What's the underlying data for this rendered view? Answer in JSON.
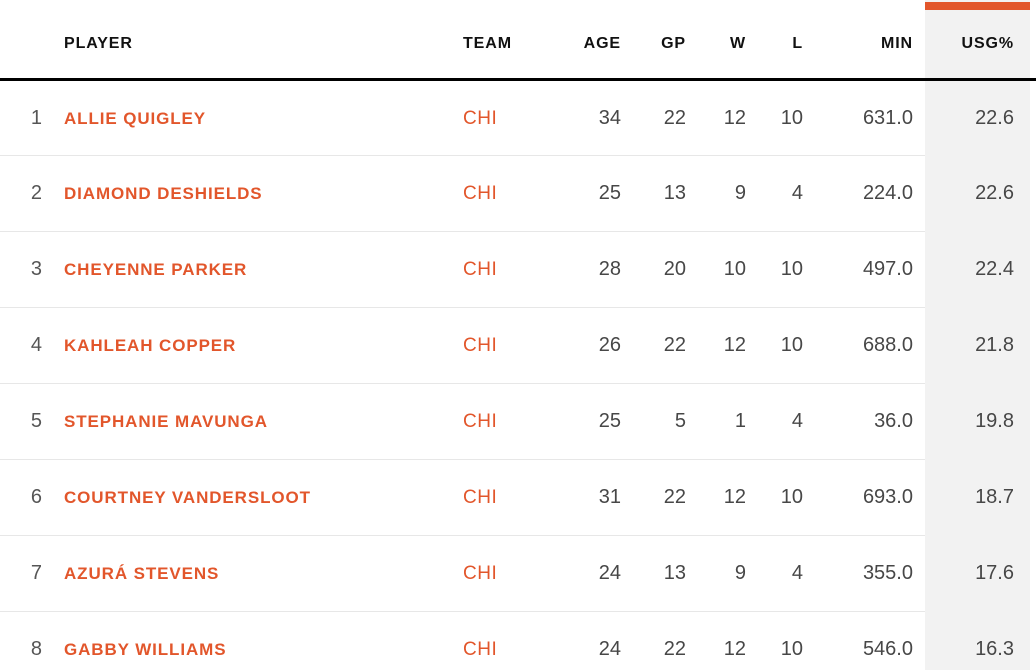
{
  "colors": {
    "accent_orange": "#E2562B",
    "highlight_column_bg": "#F2F2F2",
    "header_text": "#111111",
    "value_text": "#474747",
    "row_divider": "#E7E7E7",
    "header_rule": "#000000"
  },
  "table": {
    "sorted_column": "USG%",
    "headers": {
      "rank": "",
      "player": "PLAYER",
      "team": "TEAM",
      "age": "AGE",
      "gp": "GP",
      "w": "W",
      "l": "L",
      "min": "MIN",
      "usg": "USG%"
    },
    "rows": [
      {
        "rank": "1",
        "player": "ALLIE QUIGLEY",
        "team": "CHI",
        "age": "34",
        "gp": "22",
        "w": "12",
        "l": "10",
        "min": "631.0",
        "usg": "22.6"
      },
      {
        "rank": "2",
        "player": "DIAMOND DESHIELDS",
        "team": "CHI",
        "age": "25",
        "gp": "13",
        "w": "9",
        "l": "4",
        "min": "224.0",
        "usg": "22.6"
      },
      {
        "rank": "3",
        "player": "CHEYENNE PARKER",
        "team": "CHI",
        "age": "28",
        "gp": "20",
        "w": "10",
        "l": "10",
        "min": "497.0",
        "usg": "22.4"
      },
      {
        "rank": "4",
        "player": "KAHLEAH COPPER",
        "team": "CHI",
        "age": "26",
        "gp": "22",
        "w": "12",
        "l": "10",
        "min": "688.0",
        "usg": "21.8"
      },
      {
        "rank": "5",
        "player": "STEPHANIE MAVUNGA",
        "team": "CHI",
        "age": "25",
        "gp": "5",
        "w": "1",
        "l": "4",
        "min": "36.0",
        "usg": "19.8"
      },
      {
        "rank": "6",
        "player": "COURTNEY VANDERSLOOT",
        "team": "CHI",
        "age": "31",
        "gp": "22",
        "w": "12",
        "l": "10",
        "min": "693.0",
        "usg": "18.7"
      },
      {
        "rank": "7",
        "player": "AZURÁ STEVENS",
        "team": "CHI",
        "age": "24",
        "gp": "13",
        "w": "9",
        "l": "4",
        "min": "355.0",
        "usg": "17.6"
      },
      {
        "rank": "8",
        "player": "GABBY WILLIAMS",
        "team": "CHI",
        "age": "24",
        "gp": "22",
        "w": "12",
        "l": "10",
        "min": "546.0",
        "usg": "16.3"
      }
    ]
  }
}
